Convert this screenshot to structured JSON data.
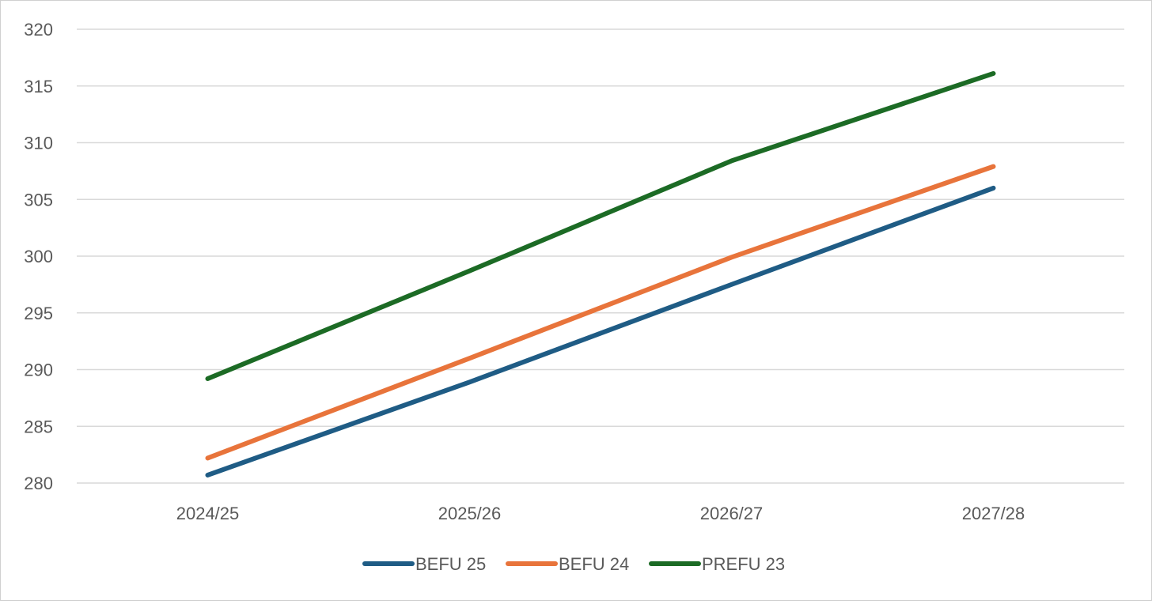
{
  "chart_data": {
    "type": "line",
    "title": "",
    "xlabel": "",
    "ylabel": "",
    "categories": [
      "2024/25",
      "2025/26",
      "2026/27",
      "2027/28"
    ],
    "ylim": [
      280,
      320
    ],
    "ytick_step": 5,
    "grid": true,
    "legend_position": "bottom",
    "series": [
      {
        "name": "BEFU 25",
        "color": "#1f5c85",
        "values": [
          280.7,
          288.9,
          297.5,
          306.0
        ]
      },
      {
        "name": "BEFU 24",
        "color": "#e8743b",
        "values": [
          282.2,
          291.0,
          299.9,
          307.9
        ]
      },
      {
        "name": "PREFU 23",
        "color": "#1c6b25",
        "values": [
          289.2,
          298.7,
          308.4,
          316.1
        ]
      }
    ]
  }
}
